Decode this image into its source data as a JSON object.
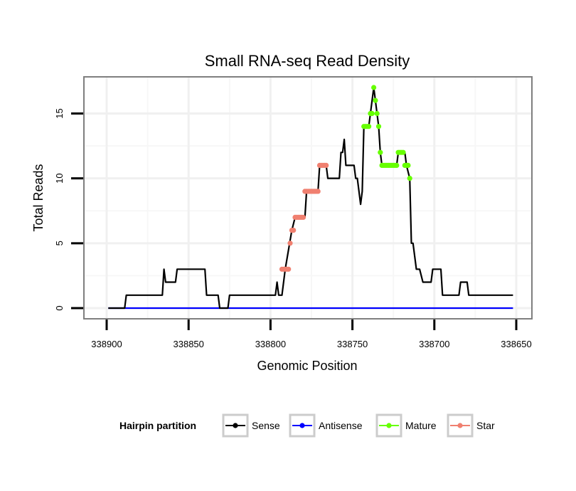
{
  "chart_data": {
    "type": "line",
    "title": "Small RNA-seq Read Density",
    "xlabel": "Genomic Position",
    "ylabel": "Total Reads",
    "xlim": [
      338900,
      338650
    ],
    "x_reversed": true,
    "ylim": [
      0,
      17
    ],
    "x_ticks": [
      338900,
      338850,
      338800,
      338750,
      338700,
      338650
    ],
    "x_tick_labels": [
      "338900",
      "338850",
      "338800",
      "338750",
      "338700",
      "338650"
    ],
    "y_ticks": [
      0,
      5,
      10,
      15
    ],
    "y_tick_labels": [
      "0",
      "5",
      "10",
      "15"
    ],
    "grid": true,
    "legend": {
      "title": "Hairpin partition",
      "position": "bottom",
      "entries": [
        {
          "name": "Sense",
          "color": "#000000"
        },
        {
          "name": "Antisense",
          "color": "#0000ff"
        },
        {
          "name": "Mature",
          "color": "#66ff00"
        },
        {
          "name": "Star",
          "color": "#f08070"
        }
      ]
    },
    "series": [
      {
        "name": "Sense",
        "color": "#000000",
        "points": [
          [
            338899,
            0
          ],
          [
            338889,
            0
          ],
          [
            338888,
            1
          ],
          [
            338866,
            1
          ],
          [
            338865,
            3
          ],
          [
            338864,
            2
          ],
          [
            338858,
            2
          ],
          [
            338857,
            3
          ],
          [
            338840,
            3
          ],
          [
            338839,
            1
          ],
          [
            338832,
            1
          ],
          [
            338831,
            0
          ],
          [
            338826,
            0
          ],
          [
            338825,
            1
          ],
          [
            338797,
            1
          ],
          [
            338796,
            2
          ],
          [
            338795,
            1
          ],
          [
            338793,
            1
          ],
          [
            338791,
            3
          ],
          [
            338787,
            6
          ],
          [
            338785,
            7
          ],
          [
            338779,
            7
          ],
          [
            338778,
            9
          ],
          [
            338771,
            9
          ],
          [
            338770,
            11
          ],
          [
            338766,
            11
          ],
          [
            338765,
            10
          ],
          [
            338758,
            10
          ],
          [
            338757,
            12
          ],
          [
            338756,
            12
          ],
          [
            338755,
            13
          ],
          [
            338754,
            11
          ],
          [
            338749,
            11
          ],
          [
            338748,
            10
          ],
          [
            338747,
            10
          ],
          [
            338745,
            8
          ],
          [
            338744,
            9
          ],
          [
            338743,
            14
          ],
          [
            338740,
            14
          ],
          [
            338739,
            15
          ],
          [
            338737,
            17
          ],
          [
            338736,
            16
          ],
          [
            338735,
            15
          ],
          [
            338734,
            14
          ],
          [
            338733,
            12
          ],
          [
            338732,
            11
          ],
          [
            338723,
            11
          ],
          [
            338722,
            12
          ],
          [
            338718,
            12
          ],
          [
            338717,
            11
          ],
          [
            338715,
            10
          ],
          [
            338714,
            5
          ],
          [
            338713,
            5
          ],
          [
            338711,
            3
          ],
          [
            338709,
            3
          ],
          [
            338707,
            2
          ],
          [
            338702,
            2
          ],
          [
            338701,
            3
          ],
          [
            338696,
            3
          ],
          [
            338695,
            1
          ],
          [
            338685,
            1
          ],
          [
            338684,
            2
          ],
          [
            338680,
            2
          ],
          [
            338679,
            1
          ],
          [
            338652,
            1
          ]
        ]
      },
      {
        "name": "Antisense",
        "color": "#0000ff",
        "points": [
          [
            338899,
            0
          ],
          [
            338652,
            0
          ]
        ]
      },
      {
        "name": "Mature",
        "color": "#66ff00",
        "points": [
          [
            338743,
            14
          ],
          [
            338742,
            14
          ],
          [
            338741,
            14
          ],
          [
            338740,
            14
          ],
          [
            338739,
            15
          ],
          [
            338738,
            15
          ],
          [
            338737,
            17
          ],
          [
            338736,
            16
          ],
          [
            338735,
            15
          ],
          [
            338734,
            14
          ],
          [
            338733,
            12
          ],
          [
            338732,
            11
          ],
          [
            338731,
            11
          ],
          [
            338730,
            11
          ],
          [
            338729,
            11
          ],
          [
            338728,
            11
          ],
          [
            338727,
            11
          ],
          [
            338726,
            11
          ],
          [
            338725,
            11
          ],
          [
            338724,
            11
          ],
          [
            338723,
            11
          ],
          [
            338722,
            12
          ],
          [
            338721,
            12
          ],
          [
            338720,
            12
          ],
          [
            338719,
            12
          ],
          [
            338718,
            11
          ],
          [
            338717,
            11
          ],
          [
            338716,
            11
          ],
          [
            338715,
            10
          ]
        ]
      },
      {
        "name": "Star",
        "color": "#f08070",
        "points": [
          [
            338793,
            3
          ],
          [
            338792,
            3
          ],
          [
            338791,
            3
          ],
          [
            338790,
            3
          ],
          [
            338789,
            3
          ],
          [
            338788,
            5
          ],
          [
            338787,
            6
          ],
          [
            338786,
            6
          ],
          [
            338785,
            7
          ],
          [
            338784,
            7
          ],
          [
            338783,
            7
          ],
          [
            338782,
            7
          ],
          [
            338781,
            7
          ],
          [
            338780,
            7
          ],
          [
            338779,
            9
          ],
          [
            338778,
            9
          ],
          [
            338777,
            9
          ],
          [
            338776,
            9
          ],
          [
            338775,
            9
          ],
          [
            338774,
            9
          ],
          [
            338773,
            9
          ],
          [
            338772,
            9
          ],
          [
            338771,
            9
          ],
          [
            338770,
            11
          ],
          [
            338769,
            11
          ],
          [
            338768,
            11
          ],
          [
            338767,
            11
          ],
          [
            338766,
            11
          ]
        ]
      }
    ]
  }
}
